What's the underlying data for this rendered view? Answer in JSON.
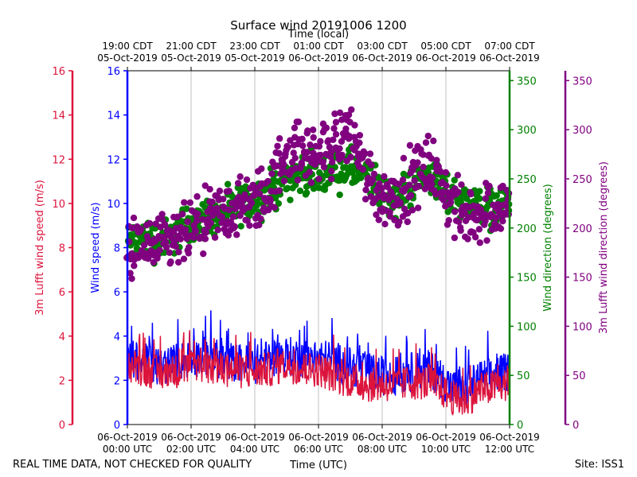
{
  "chart_data": {
    "type": "scatter",
    "title": "Surface wind 20191006 1200",
    "top_axis_label": "Time (local)",
    "xlabel": "Time (UTC)",
    "footer_left": "REAL TIME DATA, NOT CHECKED FOR QUALITY",
    "footer_right": "Site: ISS1",
    "x_range_hours": [
      0,
      12
    ],
    "bottom_ticks": [
      {
        "hour": 0,
        "line1": "06-Oct-2019",
        "line2": "00:00 UTC"
      },
      {
        "hour": 2,
        "line1": "06-Oct-2019",
        "line2": "02:00 UTC"
      },
      {
        "hour": 4,
        "line1": "06-Oct-2019",
        "line2": "04:00 UTC"
      },
      {
        "hour": 6,
        "line1": "06-Oct-2019",
        "line2": "06:00 UTC"
      },
      {
        "hour": 8,
        "line1": "06-Oct-2019",
        "line2": "08:00 UTC"
      },
      {
        "hour": 10,
        "line1": "06-Oct-2019",
        "line2": "10:00 UTC"
      },
      {
        "hour": 12,
        "line1": "06-Oct-2019",
        "line2": "12:00 UTC"
      }
    ],
    "top_ticks": [
      {
        "hour": 0,
        "line1": "19:00 CDT",
        "line2": "05-Oct-2019"
      },
      {
        "hour": 2,
        "line1": "21:00 CDT",
        "line2": "05-Oct-2019"
      },
      {
        "hour": 4,
        "line1": "23:00 CDT",
        "line2": "05-Oct-2019"
      },
      {
        "hour": 6,
        "line1": "01:00 CDT",
        "line2": "06-Oct-2019"
      },
      {
        "hour": 8,
        "line1": "03:00 CDT",
        "line2": "06-Oct-2019"
      },
      {
        "hour": 10,
        "line1": "05:00 CDT",
        "line2": "06-Oct-2019"
      },
      {
        "hour": 12,
        "line1": "07:00 CDT",
        "line2": "06-Oct-2019"
      }
    ],
    "axes": {
      "wind_speed": {
        "label": "Wind speed (m/s)",
        "color": "#0000ff",
        "ylim": [
          0,
          16
        ],
        "ticks": [
          0,
          2,
          4,
          6,
          8,
          10,
          12,
          14,
          16
        ]
      },
      "lufft_speed": {
        "label": "3m Lufft wind speed (m/s)",
        "color": "#dc143c",
        "ylim": [
          0,
          16
        ],
        "ticks": [
          0,
          2,
          4,
          6,
          8,
          10,
          12,
          14,
          16
        ]
      },
      "wind_dir": {
        "label": "Wind direction (degrees)",
        "color": "#008000",
        "ylim": [
          0,
          360
        ],
        "ticks": [
          0,
          50,
          100,
          150,
          200,
          250,
          300,
          350
        ]
      },
      "lufft_dir": {
        "label": "3m Lufft wind direction (degrees)",
        "color": "#800080",
        "ylim": [
          0,
          360
        ],
        "ticks": [
          0,
          50,
          100,
          150,
          200,
          250,
          300,
          350
        ]
      }
    },
    "series": [
      {
        "name": "Wind speed",
        "axis": "wind_speed",
        "style": "line",
        "color": "#0000ff",
        "hours": [
          0,
          0.5,
          1,
          1.5,
          2,
          2.5,
          3,
          3.5,
          4,
          4.5,
          5,
          5.5,
          6,
          6.5,
          7,
          7.5,
          8,
          8.5,
          9,
          9.5,
          10,
          10.5,
          11,
          11.5,
          12
        ],
        "values": [
          3.0,
          2.8,
          2.6,
          2.8,
          3.0,
          3.1,
          2.9,
          2.8,
          2.7,
          3.0,
          3.1,
          3.0,
          3.0,
          2.9,
          2.6,
          2.4,
          2.2,
          2.2,
          2.4,
          2.5,
          1.9,
          1.4,
          2.0,
          2.2,
          2.4
        ],
        "amplitude": 0.9
      },
      {
        "name": "3m Lufft wind speed",
        "axis": "lufft_speed",
        "style": "line",
        "color": "#dc143c",
        "hours": [
          0,
          0.5,
          1,
          1.5,
          2,
          2.5,
          3,
          3.5,
          4,
          4.5,
          5,
          5.5,
          6,
          6.5,
          7,
          7.5,
          8,
          8.5,
          9,
          9.5,
          10,
          10.5,
          11,
          11.5,
          12
        ],
        "values": [
          2.7,
          2.5,
          2.3,
          2.4,
          2.6,
          2.6,
          2.5,
          2.4,
          2.4,
          2.5,
          2.7,
          2.5,
          2.5,
          2.2,
          2.0,
          1.8,
          1.8,
          1.8,
          1.9,
          1.9,
          1.4,
          1.0,
          1.5,
          1.7,
          1.8
        ],
        "amplitude": 0.8
      },
      {
        "name": "Wind direction",
        "axis": "wind_dir",
        "style": "scatter",
        "color": "#008000",
        "hours": [
          0,
          0.5,
          1,
          1.5,
          2,
          2.5,
          3,
          3.5,
          4,
          4.5,
          5,
          5.5,
          6,
          6.5,
          7,
          7.5,
          8,
          8.5,
          9,
          9.5,
          10,
          10.5,
          11,
          11.5,
          12
        ],
        "values": [
          185,
          190,
          185,
          195,
          205,
          210,
          215,
          222,
          230,
          238,
          250,
          255,
          255,
          258,
          260,
          255,
          235,
          230,
          245,
          255,
          235,
          230,
          225,
          220,
          225
        ],
        "spread": 14
      },
      {
        "name": "3m Lufft wind direction",
        "axis": "lufft_dir",
        "style": "scatter",
        "color": "#800080",
        "hours": [
          0,
          0.5,
          1,
          1.5,
          2,
          2.5,
          3,
          3.5,
          4,
          4.5,
          5,
          5.5,
          6,
          6.5,
          7,
          7.5,
          8,
          8.5,
          9,
          9.5,
          10,
          10.5,
          11,
          11.5,
          12
        ],
        "values": [
          175,
          180,
          180,
          185,
          195,
          205,
          215,
          220,
          225,
          240,
          280,
          275,
          275,
          285,
          300,
          255,
          230,
          235,
          250,
          265,
          235,
          210,
          215,
          220,
          225
        ],
        "spread": 22
      }
    ]
  }
}
